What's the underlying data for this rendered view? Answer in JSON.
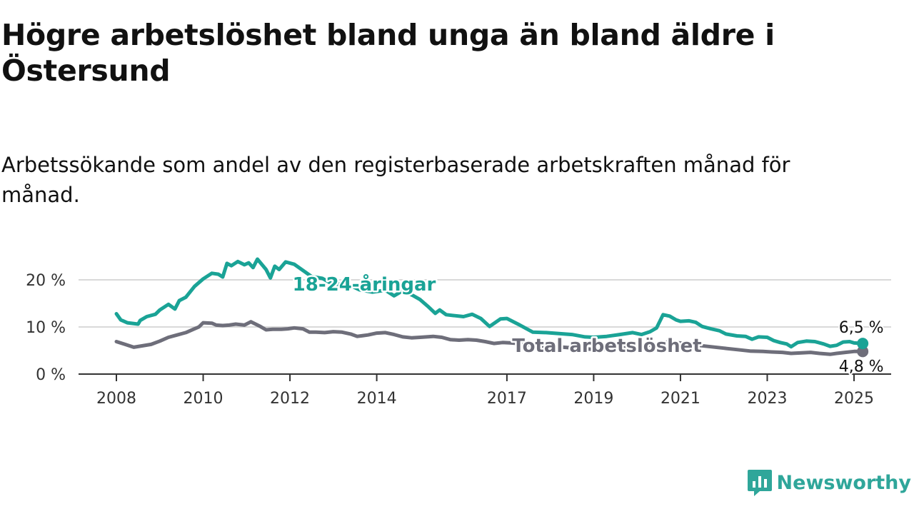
{
  "header": {
    "title": "Högre arbetslöshet bland unga än bland äldre i Östersund",
    "subtitle": "Arbetssökande som andel av den registerbaserade arbetskraften månad för månad."
  },
  "brand": {
    "name": "Newsworthy",
    "icon": "newsworthy-logo-icon",
    "color": "#2fa69a"
  },
  "chart_data": {
    "type": "line",
    "title": "Högre arbetslöshet bland unga än bland äldre i Östersund",
    "subtitle": "Arbetssökande som andel av den registerbaserade arbetskraften månad för månad.",
    "xlim": [
      2008,
      2025.2
    ],
    "ylim": [
      0,
      21
    ],
    "x_ticks": [
      2008,
      2010,
      2012,
      2014,
      2017,
      2019,
      2021,
      2023,
      2025
    ],
    "x_tick_labels": [
      "2008",
      "2010",
      "2012",
      "2014",
      "2017",
      "2019",
      "2021",
      "2023",
      "2025"
    ],
    "y_ticks": [
      0,
      10,
      20
    ],
    "y_tick_labels": [
      "0 %",
      "10 %",
      "20 %"
    ],
    "grid": "horizontal",
    "legend": "inline labels",
    "series": [
      {
        "name": "18-24-åringar",
        "color": "#1aa396",
        "end_label": "6,5 %",
        "points": [
          [
            2008.0,
            12.8
          ],
          [
            2008.1,
            11.5
          ],
          [
            2008.25,
            10.9
          ],
          [
            2008.5,
            10.6
          ],
          [
            2008.55,
            11.4
          ],
          [
            2008.7,
            12.2
          ],
          [
            2008.9,
            12.7
          ],
          [
            2009.0,
            13.6
          ],
          [
            2009.2,
            14.8
          ],
          [
            2009.35,
            13.8
          ],
          [
            2009.45,
            15.6
          ],
          [
            2009.6,
            16.3
          ],
          [
            2009.8,
            18.6
          ],
          [
            2010.0,
            20.2
          ],
          [
            2010.2,
            21.4
          ],
          [
            2010.35,
            21.2
          ],
          [
            2010.45,
            20.6
          ],
          [
            2010.55,
            23.5
          ],
          [
            2010.65,
            23.0
          ],
          [
            2010.8,
            23.9
          ],
          [
            2010.95,
            23.2
          ],
          [
            2011.05,
            23.6
          ],
          [
            2011.15,
            22.6
          ],
          [
            2011.25,
            24.4
          ],
          [
            2011.45,
            22.2
          ],
          [
            2011.55,
            20.4
          ],
          [
            2011.65,
            22.9
          ],
          [
            2011.75,
            22.2
          ],
          [
            2011.9,
            23.8
          ],
          [
            2012.1,
            23.3
          ],
          [
            2012.3,
            22.0
          ],
          [
            2012.5,
            20.7
          ],
          [
            2012.75,
            20.3
          ],
          [
            2013.0,
            19.0
          ],
          [
            2013.3,
            19.2
          ],
          [
            2013.6,
            17.9
          ],
          [
            2013.9,
            17.4
          ],
          [
            2014.2,
            17.8
          ],
          [
            2014.4,
            16.6
          ],
          [
            2014.6,
            17.7
          ],
          [
            2014.85,
            16.6
          ],
          [
            2015.0,
            15.8
          ],
          [
            2015.2,
            14.2
          ],
          [
            2015.35,
            12.9
          ],
          [
            2015.45,
            13.6
          ],
          [
            2015.6,
            12.6
          ],
          [
            2015.8,
            12.4
          ],
          [
            2016.0,
            12.2
          ],
          [
            2016.2,
            12.7
          ],
          [
            2016.4,
            11.8
          ],
          [
            2016.6,
            10.1
          ],
          [
            2016.85,
            11.7
          ],
          [
            2017.0,
            11.8
          ],
          [
            2017.3,
            10.4
          ],
          [
            2017.6,
            8.9
          ],
          [
            2017.9,
            8.8
          ],
          [
            2018.2,
            8.6
          ],
          [
            2018.5,
            8.4
          ],
          [
            2018.8,
            7.9
          ],
          [
            2019.0,
            7.8
          ],
          [
            2019.3,
            8.0
          ],
          [
            2019.6,
            8.4
          ],
          [
            2019.9,
            8.8
          ],
          [
            2020.1,
            8.4
          ],
          [
            2020.3,
            9.0
          ],
          [
            2020.45,
            9.8
          ],
          [
            2020.6,
            12.6
          ],
          [
            2020.75,
            12.3
          ],
          [
            2020.9,
            11.5
          ],
          [
            2021.0,
            11.2
          ],
          [
            2021.2,
            11.3
          ],
          [
            2021.35,
            11.0
          ],
          [
            2021.5,
            10.1
          ],
          [
            2021.7,
            9.6
          ],
          [
            2021.9,
            9.2
          ],
          [
            2022.05,
            8.5
          ],
          [
            2022.3,
            8.1
          ],
          [
            2022.5,
            8.0
          ],
          [
            2022.65,
            7.4
          ],
          [
            2022.8,
            7.9
          ],
          [
            2023.0,
            7.8
          ],
          [
            2023.15,
            7.1
          ],
          [
            2023.3,
            6.7
          ],
          [
            2023.45,
            6.4
          ],
          [
            2023.55,
            5.8
          ],
          [
            2023.7,
            6.7
          ],
          [
            2023.9,
            7.0
          ],
          [
            2024.1,
            6.9
          ],
          [
            2024.3,
            6.4
          ],
          [
            2024.45,
            5.9
          ],
          [
            2024.6,
            6.1
          ],
          [
            2024.75,
            6.8
          ],
          [
            2024.9,
            6.9
          ],
          [
            2025.0,
            6.6
          ],
          [
            2025.2,
            6.5
          ]
        ]
      },
      {
        "name": "Total arbetslöshet",
        "color": "#6e6e7a",
        "end_label": "4,8 %",
        "points": [
          [
            2008.0,
            6.9
          ],
          [
            2008.2,
            6.3
          ],
          [
            2008.4,
            5.7
          ],
          [
            2008.6,
            6.0
          ],
          [
            2008.8,
            6.3
          ],
          [
            2009.0,
            7.0
          ],
          [
            2009.2,
            7.8
          ],
          [
            2009.4,
            8.3
          ],
          [
            2009.6,
            8.8
          ],
          [
            2009.8,
            9.6
          ],
          [
            2009.9,
            10.0
          ],
          [
            2010.0,
            10.9
          ],
          [
            2010.2,
            10.8
          ],
          [
            2010.3,
            10.4
          ],
          [
            2010.45,
            10.3
          ],
          [
            2010.6,
            10.4
          ],
          [
            2010.75,
            10.6
          ],
          [
            2010.95,
            10.4
          ],
          [
            2011.1,
            11.1
          ],
          [
            2011.3,
            10.2
          ],
          [
            2011.45,
            9.4
          ],
          [
            2011.6,
            9.5
          ],
          [
            2011.8,
            9.5
          ],
          [
            2011.95,
            9.6
          ],
          [
            2012.1,
            9.8
          ],
          [
            2012.3,
            9.6
          ],
          [
            2012.45,
            8.9
          ],
          [
            2012.6,
            8.9
          ],
          [
            2012.8,
            8.8
          ],
          [
            2013.0,
            9.0
          ],
          [
            2013.2,
            8.9
          ],
          [
            2013.4,
            8.5
          ],
          [
            2013.55,
            8.0
          ],
          [
            2013.8,
            8.3
          ],
          [
            2014.0,
            8.7
          ],
          [
            2014.2,
            8.8
          ],
          [
            2014.4,
            8.4
          ],
          [
            2014.6,
            7.9
          ],
          [
            2014.8,
            7.7
          ],
          [
            2015.0,
            7.8
          ],
          [
            2015.3,
            8.0
          ],
          [
            2015.5,
            7.8
          ],
          [
            2015.7,
            7.3
          ],
          [
            2015.9,
            7.2
          ],
          [
            2016.1,
            7.3
          ],
          [
            2016.3,
            7.2
          ],
          [
            2016.5,
            6.9
          ],
          [
            2016.7,
            6.5
          ],
          [
            2016.9,
            6.7
          ],
          [
            2017.1,
            6.6
          ],
          [
            2017.4,
            6.4
          ],
          [
            2017.7,
            6.0
          ],
          [
            2018.0,
            5.8
          ],
          [
            2018.3,
            5.7
          ],
          [
            2018.6,
            5.5
          ],
          [
            2018.9,
            5.3
          ],
          [
            2019.2,
            5.2
          ],
          [
            2019.5,
            5.4
          ],
          [
            2019.8,
            5.8
          ],
          [
            2020.1,
            5.9
          ],
          [
            2020.4,
            6.3
          ],
          [
            2020.7,
            6.8
          ],
          [
            2020.9,
            6.7
          ],
          [
            2021.1,
            6.5
          ],
          [
            2021.4,
            6.1
          ],
          [
            2021.7,
            5.8
          ],
          [
            2022.0,
            5.5
          ],
          [
            2022.3,
            5.2
          ],
          [
            2022.6,
            4.9
          ],
          [
            2022.9,
            4.8
          ],
          [
            2023.1,
            4.7
          ],
          [
            2023.35,
            4.6
          ],
          [
            2023.55,
            4.4
          ],
          [
            2023.8,
            4.5
          ],
          [
            2024.0,
            4.6
          ],
          [
            2024.2,
            4.4
          ],
          [
            2024.45,
            4.2
          ],
          [
            2024.6,
            4.4
          ],
          [
            2024.8,
            4.6
          ],
          [
            2025.0,
            4.8
          ],
          [
            2025.2,
            4.8
          ]
        ]
      }
    ]
  }
}
